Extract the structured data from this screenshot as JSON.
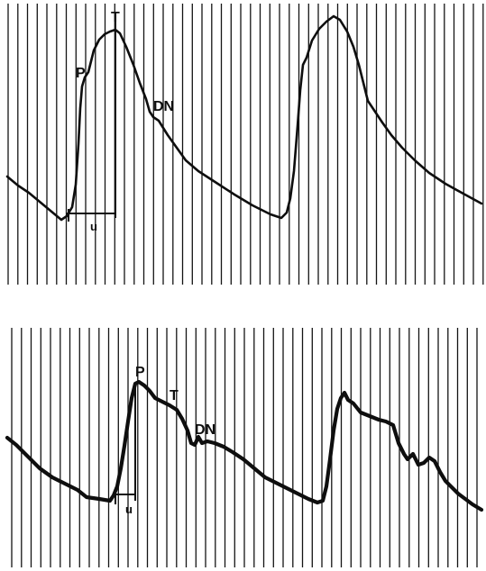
{
  "panels": [
    {
      "id": "top",
      "labels": {
        "p": "P",
        "t": "T",
        "dn": "DN",
        "u": "u"
      }
    },
    {
      "id": "bottom",
      "labels": {
        "p": "P",
        "t": "T",
        "dn": "DN",
        "u": "u"
      }
    }
  ]
}
